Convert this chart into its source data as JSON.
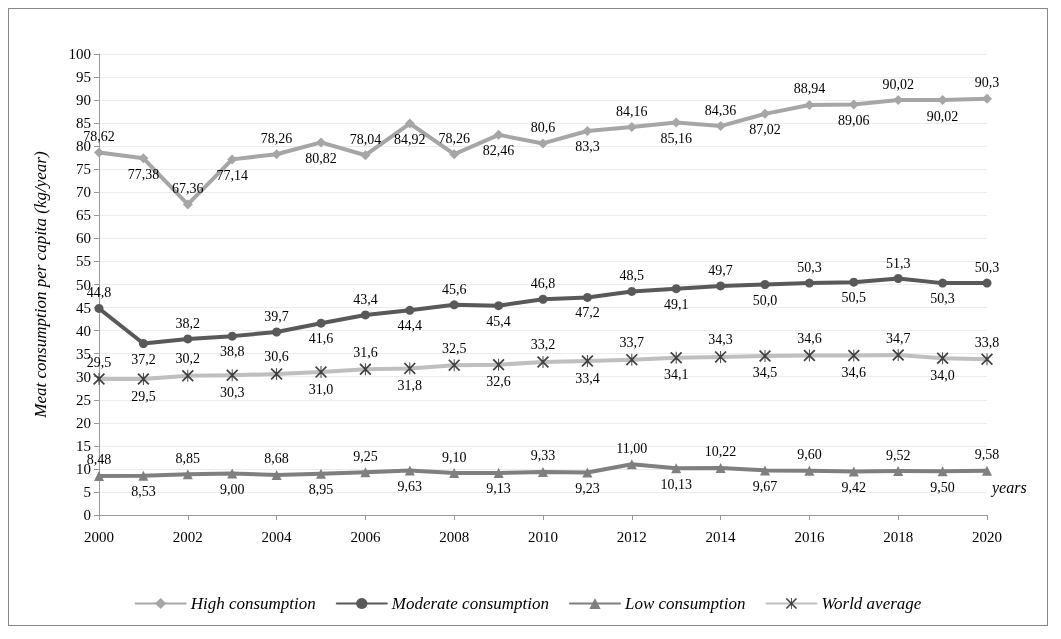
{
  "chart_data": {
    "type": "line",
    "ylabel": "Meat consumption per capita (kg/year)",
    "xlabel": "years",
    "x": [
      2000,
      2001,
      2002,
      2003,
      2004,
      2005,
      2006,
      2007,
      2008,
      2009,
      2010,
      2011,
      2012,
      2013,
      2014,
      2015,
      2016,
      2017,
      2018,
      2019,
      2020
    ],
    "xlim": [
      2000,
      2020
    ],
    "xticks": [
      2000,
      2002,
      2004,
      2006,
      2008,
      2010,
      2012,
      2014,
      2016,
      2018,
      2020
    ],
    "ylim": [
      0,
      100
    ],
    "yticks": [
      0,
      5,
      10,
      15,
      20,
      25,
      30,
      35,
      40,
      45,
      50,
      55,
      60,
      65,
      70,
      75,
      80,
      85,
      90,
      95,
      100
    ],
    "grid": "y",
    "legend": "bottom",
    "series": [
      {
        "name": "High consumption",
        "color": "#a6a6a6",
        "marker": "diamond",
        "values": [
          78.62,
          77.38,
          67.36,
          77.14,
          78.26,
          80.82,
          78.04,
          84.92,
          78.26,
          82.46,
          80.6,
          83.3,
          84.16,
          85.16,
          84.36,
          87.02,
          88.94,
          89.06,
          90.02,
          90.02,
          90.3
        ],
        "value_labels": [
          "78,62",
          "77,38",
          "67,36",
          "77,14",
          "78,26",
          "80,82",
          "78,04",
          "84,92",
          "78,26",
          "82,46",
          "80,6",
          "83,3",
          "84,16",
          "85,16",
          "84,36",
          "87,02",
          "88,94",
          "89,06",
          "90,02",
          "90,02",
          "90,3"
        ]
      },
      {
        "name": "Moderate consumption",
        "color": "#595959",
        "marker": "circle",
        "values": [
          44.8,
          37.2,
          38.2,
          38.8,
          39.7,
          41.6,
          43.4,
          44.4,
          45.6,
          45.4,
          46.8,
          47.2,
          48.5,
          49.1,
          49.7,
          50.0,
          50.3,
          50.5,
          51.3,
          50.3,
          50.3
        ],
        "value_labels": [
          "44,8",
          "37,2",
          "38,2",
          "38,8",
          "39,7",
          "41,6",
          "43,4",
          "44,4",
          "45,6",
          "45,4",
          "46,8",
          "47,2",
          "48,5",
          "49,1",
          "49,7",
          "50,0",
          "50,3",
          "50,5",
          "51,3",
          "50,3",
          "50,3"
        ]
      },
      {
        "name": "Low consumption",
        "color": "#7f7f7f",
        "marker": "triangle",
        "values": [
          8.48,
          8.53,
          8.85,
          9.0,
          8.68,
          8.95,
          9.25,
          9.63,
          9.1,
          9.13,
          9.33,
          9.23,
          11.0,
          10.13,
          10.22,
          9.67,
          9.6,
          9.42,
          9.52,
          9.5,
          9.58
        ],
        "value_labels": [
          "8,48",
          "8,53",
          "8,85",
          "9,00",
          "8,68",
          "8,95",
          "9,25",
          "9,63",
          "9,10",
          "9,13",
          "9,33",
          "9,23",
          "11,00",
          "10,13",
          "10,22",
          "9,67",
          "9,60",
          "9,42",
          "9,52",
          "9,50",
          "9,58"
        ]
      },
      {
        "name": "World average",
        "color": "#bfbfbf",
        "marker": "cross",
        "values": [
          29.5,
          29.5,
          30.2,
          30.3,
          30.6,
          31.0,
          31.6,
          31.8,
          32.5,
          32.6,
          33.2,
          33.4,
          33.7,
          34.1,
          34.3,
          34.5,
          34.6,
          34.6,
          34.7,
          34.0,
          33.8
        ],
        "value_labels": [
          "29,5",
          "29,5",
          "30,2",
          "30,3",
          "30,6",
          "31,0",
          "31,6",
          "31,8",
          "32,5",
          "32,6",
          "33,2",
          "33,4",
          "33,7",
          "34,1",
          "34,3",
          "34,5",
          "34,6",
          "34,6",
          "34,7",
          "34,0",
          "33,8"
        ]
      }
    ]
  }
}
